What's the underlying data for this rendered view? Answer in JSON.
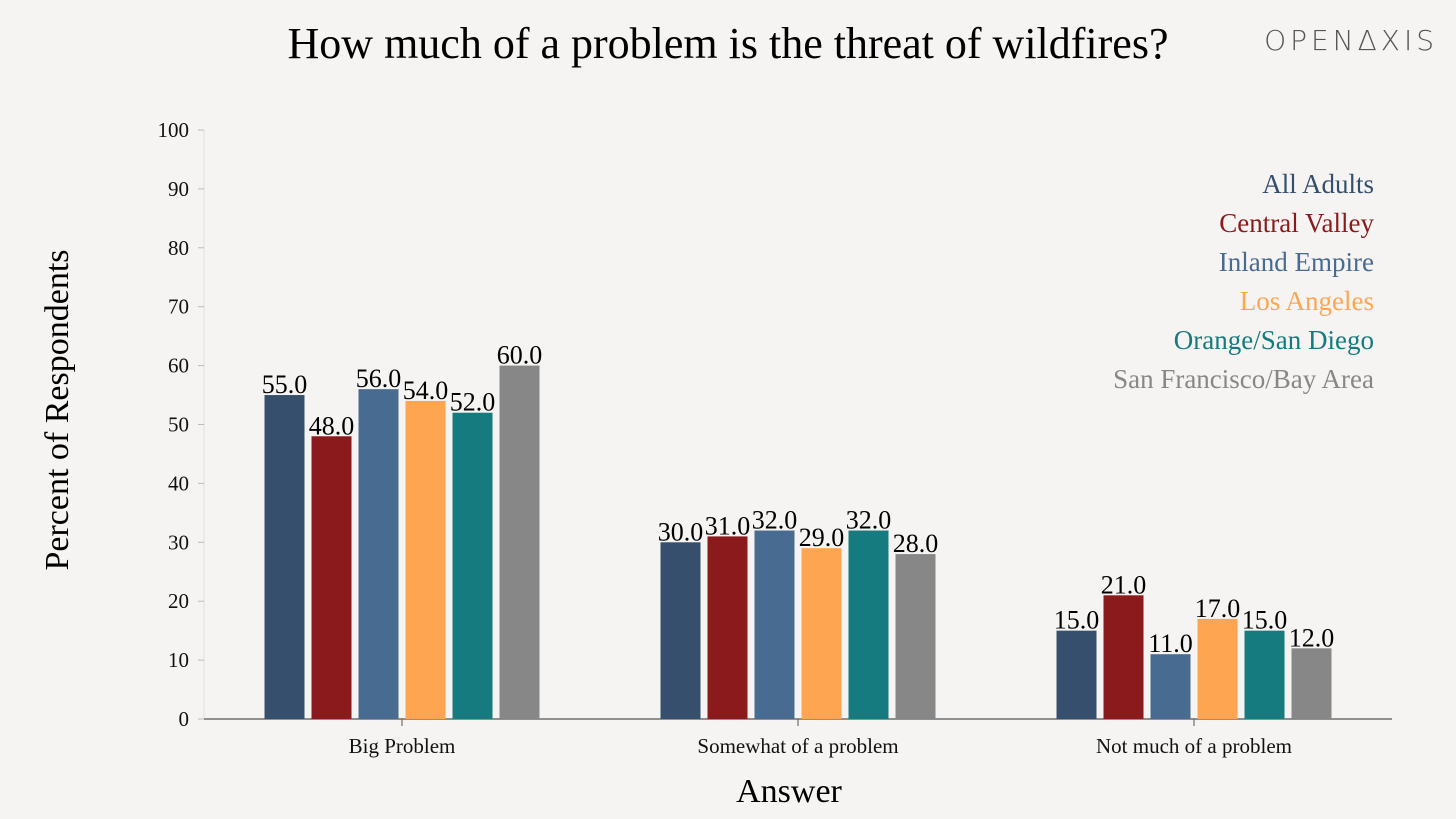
{
  "chart_data": {
    "type": "bar",
    "title": "How much of a problem is the threat of wildfires?",
    "xlabel": "Answer",
    "ylabel": "Percent of Respondents",
    "ylim": [
      0,
      100
    ],
    "yticks": [
      0,
      10,
      20,
      30,
      40,
      50,
      60,
      70,
      80,
      90,
      100
    ],
    "categories": [
      "Big Problem",
      "Somewhat of a problem",
      "Not much of a problem"
    ],
    "series": [
      {
        "name": "All Adults",
        "color": "#354f6c",
        "values": [
          55.0,
          30.0,
          15.0
        ]
      },
      {
        "name": "Central Valley",
        "color": "#8b1a1d",
        "values": [
          48.0,
          31.0,
          21.0
        ]
      },
      {
        "name": "Inland Empire",
        "color": "#486b91",
        "values": [
          56.0,
          32.0,
          11.0
        ]
      },
      {
        "name": "Los Angeles",
        "color": "#fea552",
        "values": [
          54.0,
          29.0,
          17.0
        ]
      },
      {
        "name": "Orange/San Diego",
        "color": "#167b7e",
        "values": [
          52.0,
          32.0,
          15.0
        ]
      },
      {
        "name": "San Francisco/Bay Area",
        "color": "#878787",
        "values": [
          60.0,
          28.0,
          12.0
        ]
      }
    ],
    "data_label_format": "one-decimal",
    "legend_position": "top-right",
    "grid": false
  },
  "brand": {
    "logo_text": "OPENAXIS"
  }
}
